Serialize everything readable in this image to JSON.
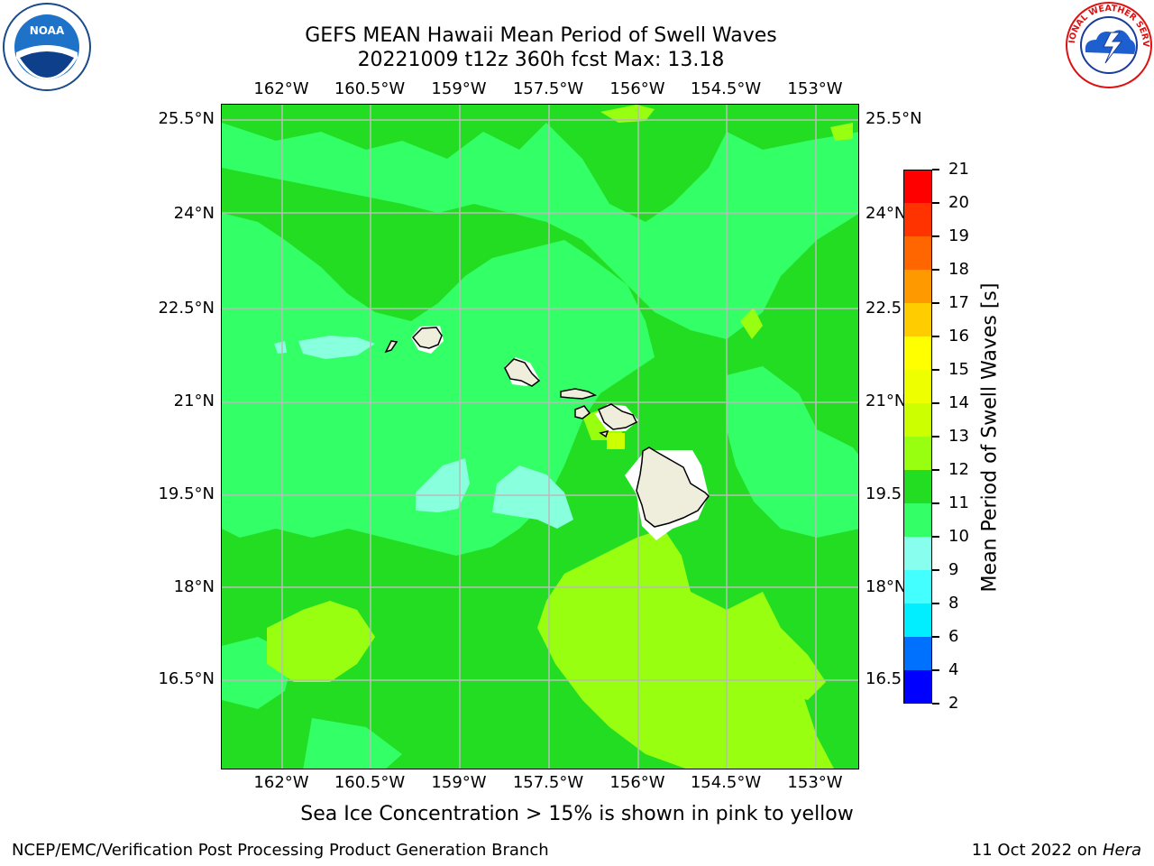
{
  "title_line1": "GEFS MEAN Hawaii Mean Period of Swell Waves",
  "title_line2": "20221009 t12z 360h fcst   Max: 13.18",
  "logos": {
    "left": "noaa-logo",
    "right": "nws-logo",
    "left_text": "NOAA",
    "right_text": "NATIONAL WEATHER SERVICE"
  },
  "map": {
    "lon_labels": [
      "162°W",
      "160.5°W",
      "159°W",
      "157.5°W",
      "156°W",
      "154.5°W",
      "153°W"
    ],
    "lat_labels": [
      "25.5°N",
      "24°N",
      "22.5°N",
      "21°N",
      "19.5°N",
      "18°N",
      "16.5°N"
    ],
    "lat_labels_right": [
      "25.5°N",
      "24°N",
      "22.5",
      "21°N",
      "19.5",
      "18°N",
      "16.5"
    ],
    "lon_values": [
      -162,
      -160.5,
      -159,
      -157.5,
      -156,
      -154.5,
      -153
    ],
    "lat_values": [
      25.5,
      24,
      22.5,
      21,
      19.5,
      18,
      16.5
    ],
    "lon_range": [
      -163,
      -152.3
    ],
    "lat_range": [
      15.0,
      25.7
    ],
    "grid": true,
    "dominant_value_range": "11-12",
    "colors": {
      "ocean_11_12": "#22dd22",
      "ocean_10_11": "#33ff66",
      "ocean_9_10": "#88ffdd",
      "ocean_12_13": "#99ff11",
      "land": "#efeddc",
      "gridline": "#bbbbbb"
    }
  },
  "colorbar": {
    "title": "Mean Period of Swell Waves [s]",
    "levels": [
      "2",
      "4",
      "6",
      "8",
      "9",
      "10",
      "11",
      "12",
      "13",
      "14",
      "15",
      "16",
      "17",
      "18",
      "19",
      "20",
      "21"
    ],
    "colors": [
      "#0000ff",
      "#0070ff",
      "#00eeff",
      "#44ffff",
      "#88ffee",
      "#33ff66",
      "#22dd22",
      "#99ff11",
      "#ccff00",
      "#eeff00",
      "#ffff00",
      "#ffcc00",
      "#ff9900",
      "#ff6600",
      "#ff3300",
      "#ff0000"
    ]
  },
  "caption": "Sea Ice Concentration > 15% is shown in pink to yellow",
  "footer_left": "NCEP/EMC/Verification Post Processing Product Generation Branch",
  "footer_right_prefix": "11 Oct 2022 on ",
  "footer_right_host": "Hera"
}
